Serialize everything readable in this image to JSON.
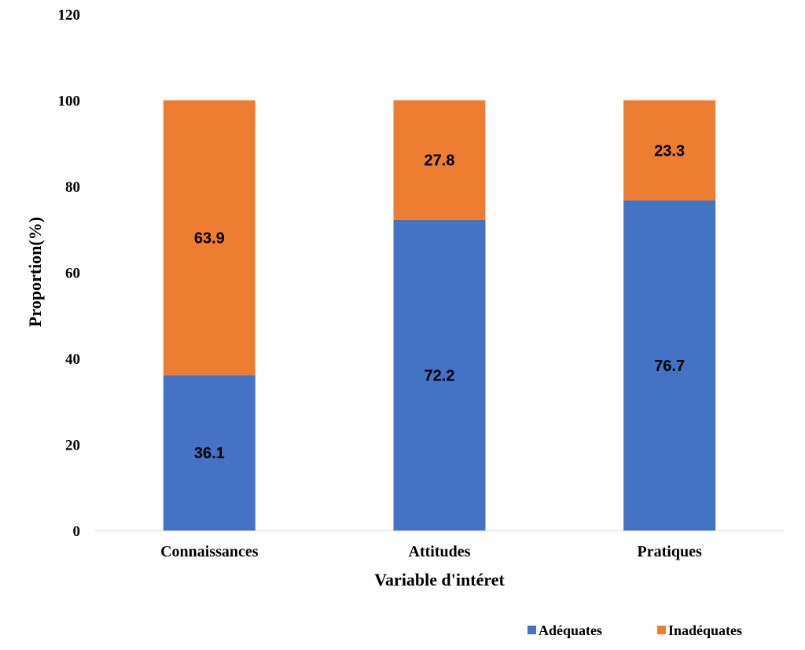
{
  "chart_data": {
    "type": "bar",
    "stacked": true,
    "title": "",
    "xlabel": "Variable d'intéret",
    "ylabel": "Proportion(%)",
    "ylim": [
      0,
      120
    ],
    "yticks": [
      "0",
      "20",
      "40",
      "60",
      "80",
      "100",
      "120"
    ],
    "grid": false,
    "legend_position": "bottom-right",
    "categories": [
      "Connaissances",
      "Attitudes",
      "Pratiques"
    ],
    "series": [
      {
        "name": "Adéquates",
        "values": [
          36.1,
          72.2,
          76.7
        ],
        "labels": [
          "36.1",
          "72.2",
          "76.7"
        ],
        "color": "#4472C4"
      },
      {
        "name": "Inadéquates",
        "values": [
          63.9,
          27.8,
          23.3
        ],
        "labels": [
          "63.9",
          "27.8",
          "23.3"
        ],
        "color": "#ED7D31"
      }
    ]
  }
}
